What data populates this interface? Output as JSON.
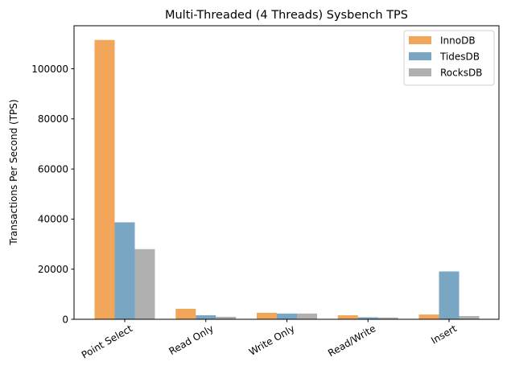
{
  "chart_data": {
    "type": "bar",
    "title": "Multi-Threaded (4 Threads) Sysbench TPS",
    "xlabel": "",
    "ylabel": "Transactions Per Second (TPS)",
    "categories": [
      "Point Select",
      "Read Only",
      "Write Only",
      "Read/Write",
      "Insert"
    ],
    "series": [
      {
        "name": "InnoDB",
        "color": "#F2A65A",
        "values": [
          111500,
          4200,
          2600,
          1600,
          1900
        ]
      },
      {
        "name": "TidesDB",
        "color": "#79A6C3",
        "values": [
          38700,
          1600,
          2300,
          800,
          19100
        ]
      },
      {
        "name": "RocksDB",
        "color": "#B0B0B0",
        "values": [
          28000,
          1000,
          2300,
          700,
          1300
        ]
      }
    ],
    "yticks": [
      0,
      20000,
      40000,
      60000,
      80000,
      100000
    ],
    "ytick_labels": [
      "0",
      "20000",
      "40000",
      "60000",
      "80000",
      "100000"
    ],
    "ylim": [
      0,
      117000
    ],
    "grid": false,
    "legend_position": "upper right",
    "xtick_rotation": 30
  }
}
